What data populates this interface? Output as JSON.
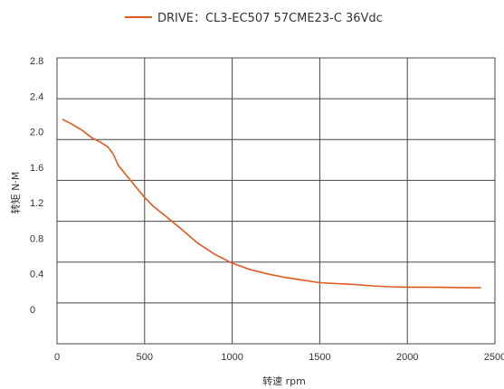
{
  "chart_data": {
    "type": "line",
    "legend_position": "top-center",
    "grid": true,
    "xlabel": "转速 rpm",
    "ylabel": "转矩 N·M",
    "x_ticks": [
      "0",
      "500",
      "1000",
      "1500",
      "2000",
      "2500"
    ],
    "y_ticks": [
      "0",
      "0.4",
      "0.8",
      "1.2",
      "1.6",
      "2.0",
      "2.4",
      "2.8"
    ],
    "xlim": [
      0,
      2500
    ],
    "series": [
      {
        "name": "DRIVE：CL3-EC507 57CME23-C   36Vdc",
        "color": "#e05a1e",
        "points": [
          [
            30,
            2.14
          ],
          [
            80,
            2.09
          ],
          [
            140,
            2.02
          ],
          [
            200,
            1.93
          ],
          [
            250,
            1.88
          ],
          [
            290,
            1.83
          ],
          [
            320,
            1.75
          ],
          [
            350,
            1.62
          ],
          [
            400,
            1.5
          ],
          [
            450,
            1.38
          ],
          [
            500,
            1.26
          ],
          [
            550,
            1.16
          ],
          [
            600,
            1.08
          ],
          [
            700,
            0.92
          ],
          [
            800,
            0.75
          ],
          [
            900,
            0.62
          ],
          [
            1000,
            0.52
          ],
          [
            1100,
            0.45
          ],
          [
            1200,
            0.4
          ],
          [
            1300,
            0.36
          ],
          [
            1400,
            0.33
          ],
          [
            1500,
            0.3
          ],
          [
            1600,
            0.29
          ],
          [
            1700,
            0.28
          ],
          [
            1800,
            0.265
          ],
          [
            1900,
            0.255
          ],
          [
            2000,
            0.25
          ],
          [
            2100,
            0.25
          ],
          [
            2200,
            0.248
          ],
          [
            2300,
            0.245
          ],
          [
            2420,
            0.243
          ]
        ]
      }
    ]
  }
}
